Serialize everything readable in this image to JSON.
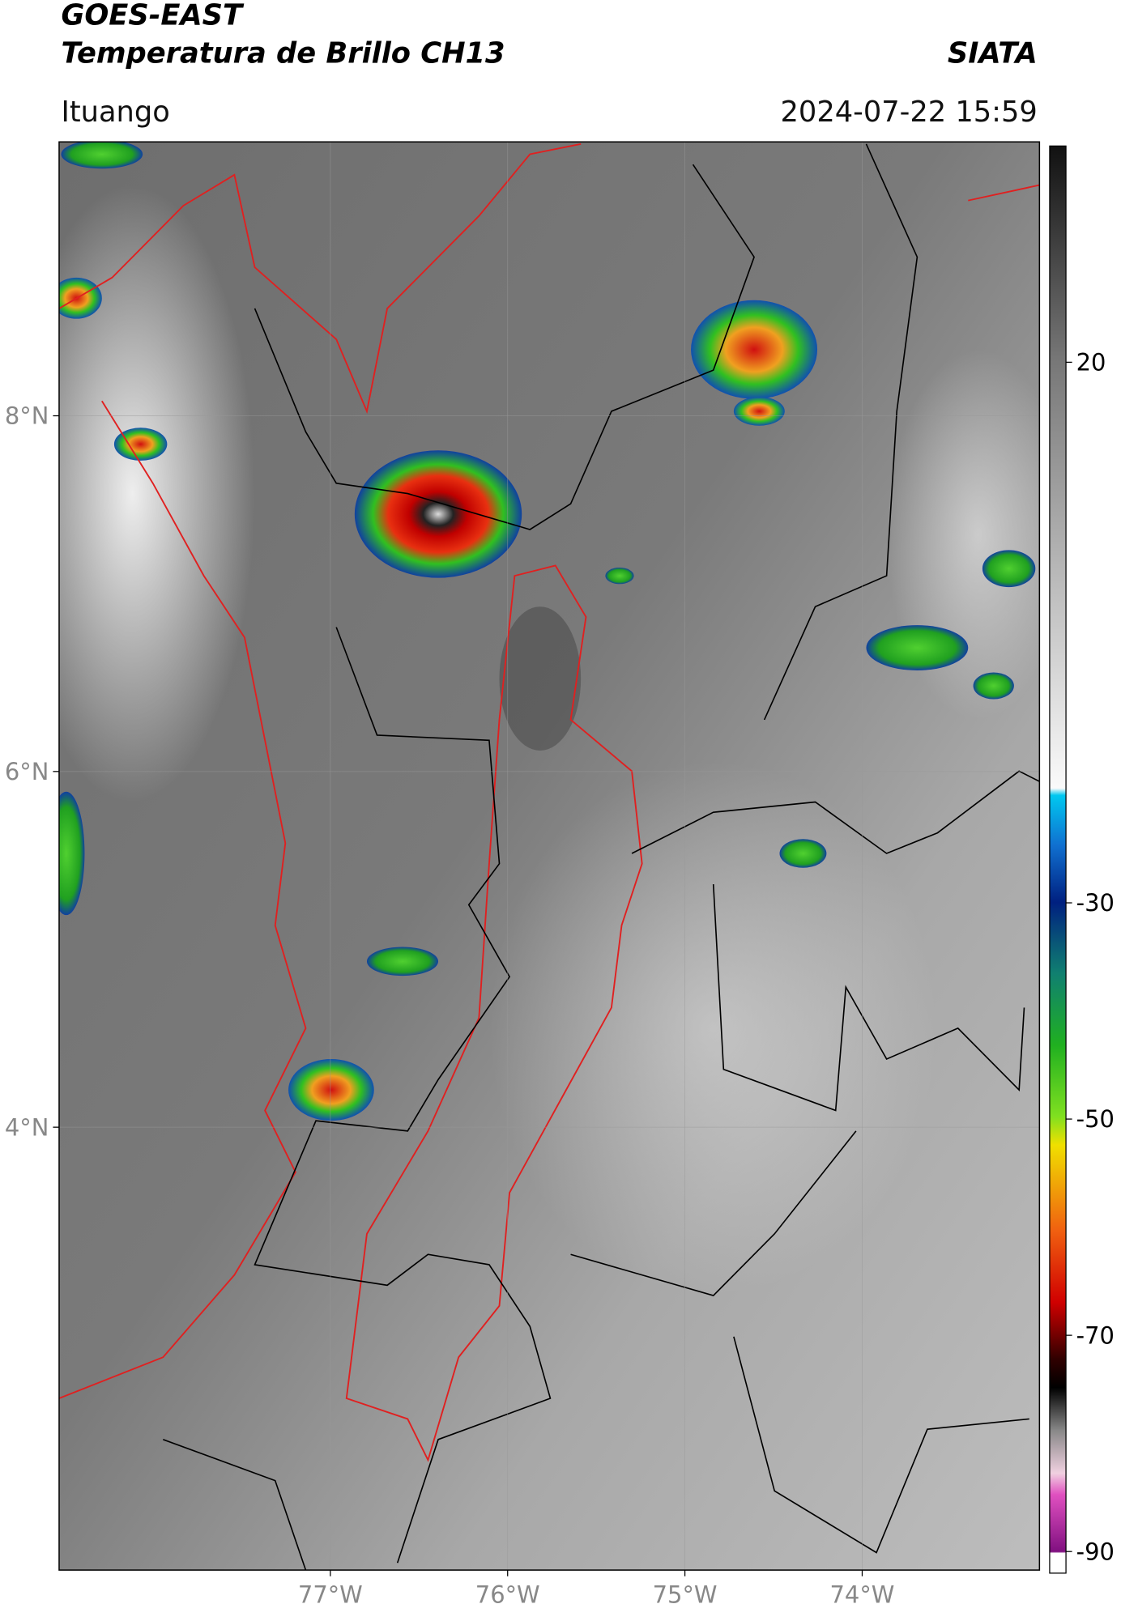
{
  "header": {
    "title_lines": [
      "GOES-EAST",
      "Temperatura de Brillo CH13"
    ],
    "credit": "SIATA",
    "location": "Ituango",
    "timestamp": "2024-07-22 15:59"
  },
  "map": {
    "xlim": [
      -78.53,
      -73.0
    ],
    "ylim": [
      1.51,
      9.54
    ],
    "xticks": [
      {
        "value": -77,
        "label": "77°W"
      },
      {
        "value": -76,
        "label": "76°W"
      },
      {
        "value": -75,
        "label": "75°W"
      },
      {
        "value": -74,
        "label": "74°W"
      }
    ],
    "yticks": [
      {
        "value": 8,
        "label": "8°N"
      },
      {
        "value": 6,
        "label": "6°N"
      },
      {
        "value": 4,
        "label": "4°N"
      }
    ],
    "grid": true
  },
  "colorbar": {
    "lim": [
      -92,
      40
    ],
    "ticks": [
      20,
      -30,
      -50,
      -70,
      -90
    ]
  }
}
